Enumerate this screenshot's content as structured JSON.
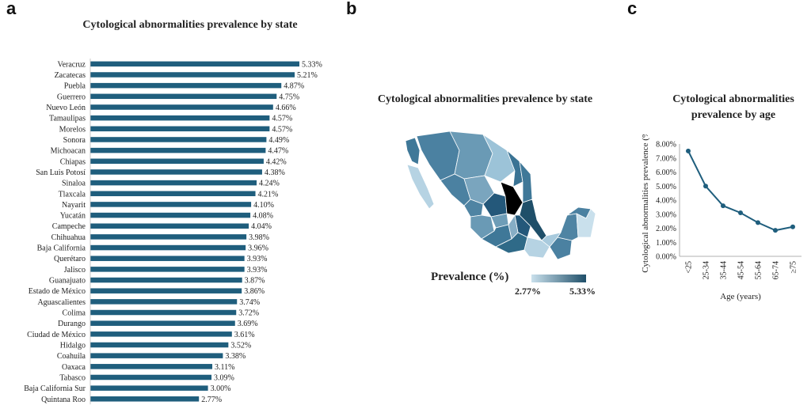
{
  "panels": {
    "a": "a",
    "b": "b",
    "c": "c"
  },
  "chart_data": [
    {
      "type": "bar",
      "orientation": "horizontal",
      "title": "Cytological abnormalities prevalence by state",
      "unit": "%",
      "color": "#1f5e7d",
      "categories": [
        "Veracruz",
        "Zacatecas",
        "Puebla",
        "Guerrero",
        "Nuevo León",
        "Tamaulipas",
        "Morelos",
        "Sonora",
        "Michoacan",
        "Chiapas",
        "San Luis Potosí",
        "Sinaloa",
        "Tlaxcala",
        "Nayarit",
        "Yucatán",
        "Campeche",
        "Chihuahua",
        "Baja California",
        "Querétaro",
        "Jalisco",
        "Guanajuato",
        "Estado de México",
        "Aguascalientes",
        "Colima",
        "Durango",
        "Ciudad de México",
        "Hidalgo",
        "Coahuila",
        "Oaxaca",
        "Tabasco",
        "Baja California Sur",
        "Quintana Roo"
      ],
      "values": [
        5.33,
        5.21,
        4.87,
        4.75,
        4.66,
        4.57,
        4.57,
        4.49,
        4.47,
        4.42,
        4.38,
        4.24,
        4.21,
        4.1,
        4.08,
        4.04,
        3.98,
        3.96,
        3.93,
        3.93,
        3.87,
        3.86,
        3.74,
        3.72,
        3.69,
        3.61,
        3.52,
        3.38,
        3.11,
        3.09,
        3.0,
        2.77
      ],
      "labels": [
        "5.33%",
        "5.21%",
        "4.87%",
        "4.75%",
        "4.66%",
        "4.57%",
        "4.57%",
        "4.49%",
        "4.47%",
        "4.42%",
        "4.38%",
        "4.24%",
        "4.21%",
        "4.10%",
        "4.08%",
        "4.04%",
        "3.98%",
        "3.96%",
        "3.93%",
        "3.93%",
        "3.87%",
        "3.86%",
        "3.74%",
        "3.72%",
        "3.69%",
        "3.61%",
        "3.52%",
        "3.38%",
        "3.11%",
        "3.09%",
        "3.00%",
        "2.77%"
      ],
      "xlim": [
        0,
        5.33
      ]
    },
    {
      "type": "map",
      "title": "Cytological abnormalities prevalence by state",
      "legend_title": "Prevalence (%)",
      "legend_min": "2.77%",
      "legend_max": "5.33%",
      "color_low": "#c9e0ec",
      "color_high": "#1f4f69"
    },
    {
      "type": "line",
      "title": "Cytological abnormalities prevalence by age",
      "xlabel": "Age (years)",
      "ylabel": "Cytological abnormalities prevalence (%)",
      "categories": [
        "<25",
        "25-34",
        "35-44",
        "45-54",
        "55-64",
        "65-74",
        "≥75"
      ],
      "values": [
        7.5,
        5.0,
        3.6,
        3.1,
        2.4,
        1.85,
        2.1
      ],
      "yticks": [
        "0.00%",
        "1.00%",
        "2.00%",
        "3.00%",
        "4.00%",
        "5.00%",
        "6.00%",
        "7.00%",
        "8.00%"
      ],
      "ylim": [
        0,
        8
      ],
      "color": "#1f5e7d",
      "grid": false
    }
  ]
}
